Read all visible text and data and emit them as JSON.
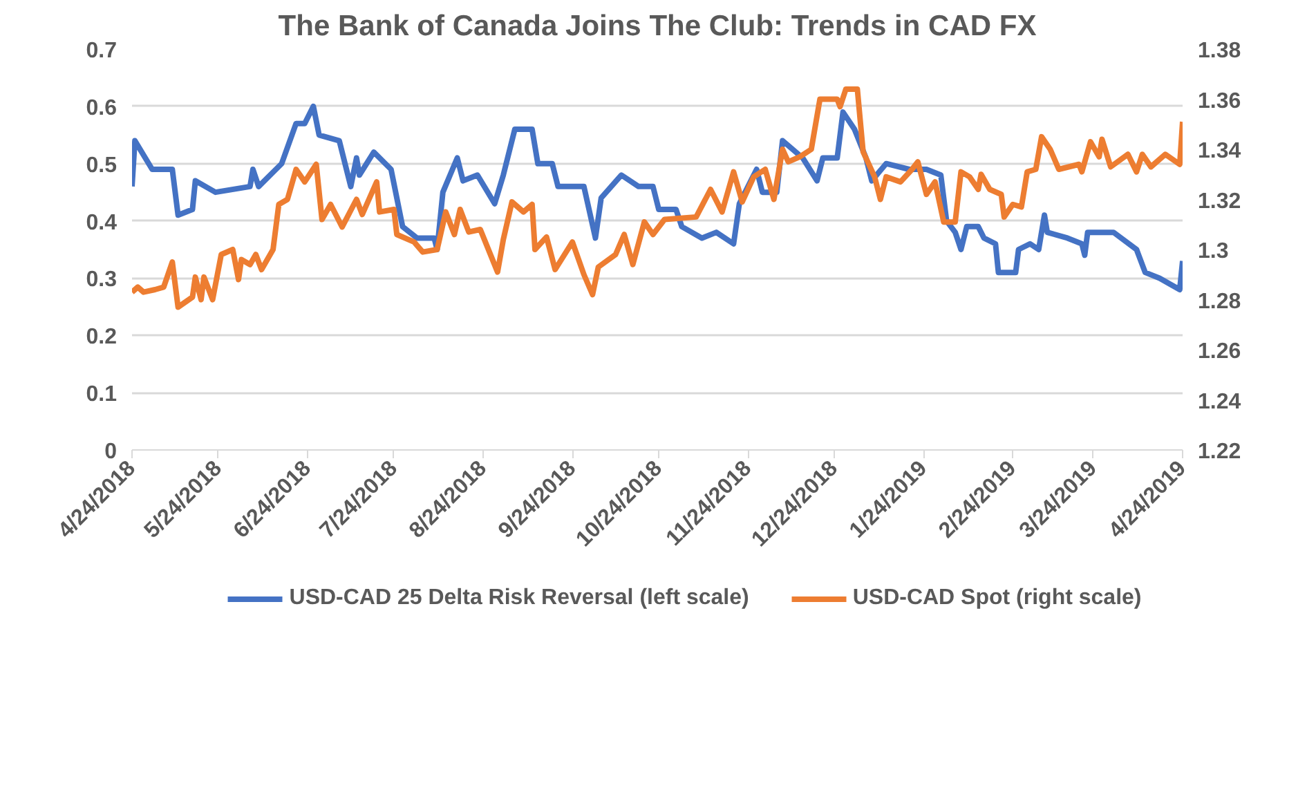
{
  "chart_data": {
    "type": "line",
    "title": "The Bank of Canada Joins The Club: Trends in CAD FX",
    "xlim": [
      "2018-04-24",
      "2019-04-24"
    ],
    "xticks": [
      {
        "value": "2018-04-24",
        "label": "4/24/2018"
      },
      {
        "value": "2018-05-24",
        "label": "5/24/2018"
      },
      {
        "value": "2018-06-24",
        "label": "6/24/2018"
      },
      {
        "value": "2018-07-24",
        "label": "7/24/2018"
      },
      {
        "value": "2018-08-24",
        "label": "8/24/2018"
      },
      {
        "value": "2018-09-24",
        "label": "9/24/2018"
      },
      {
        "value": "2018-10-24",
        "label": "10/24/2018"
      },
      {
        "value": "2018-11-24",
        "label": "11/24/2018"
      },
      {
        "value": "2018-12-24",
        "label": "12/24/2018"
      },
      {
        "value": "2019-01-24",
        "label": "1/24/2019"
      },
      {
        "value": "2019-02-24",
        "label": "2/24/2019"
      },
      {
        "value": "2019-03-24",
        "label": "3/24/2019"
      },
      {
        "value": "2019-04-24",
        "label": "4/24/2019"
      }
    ],
    "ylim": [
      0,
      0.7
    ],
    "yticks": [
      0,
      0.1,
      0.2,
      0.3,
      0.4,
      0.5,
      0.6,
      0.7
    ],
    "y2lim": [
      1.22,
      1.38
    ],
    "y2ticks": [
      1.22,
      1.24,
      1.26,
      1.28,
      {
        "value": 1.3,
        "label": "1.3"
      },
      1.32,
      1.34,
      1.36,
      1.38
    ],
    "grid": "y",
    "legend": "bottom",
    "line_style": "solid",
    "series": [
      {
        "name": "USD-CAD 25 Delta Risk Reversal (left scale)",
        "color": "#4472c4",
        "x": [
          "2018-04-24",
          "2018-04-25",
          "2018-05-01",
          "2018-05-08",
          "2018-05-10",
          "2018-05-15",
          "2018-05-16",
          "2018-05-23",
          "2018-06-04",
          "2018-06-05",
          "2018-06-07",
          "2018-06-15",
          "2018-06-20",
          "2018-06-23",
          "2018-06-26",
          "2018-06-28",
          "2018-07-05",
          "2018-07-09",
          "2018-07-11",
          "2018-07-12",
          "2018-07-17",
          "2018-07-23",
          "2018-07-27",
          "2018-08-01",
          "2018-08-07",
          "2018-08-08",
          "2018-08-10",
          "2018-08-15",
          "2018-08-17",
          "2018-08-22",
          "2018-08-28",
          "2018-08-31",
          "2018-09-04",
          "2018-09-10",
          "2018-09-12",
          "2018-09-17",
          "2018-09-19",
          "2018-09-28",
          "2018-10-02",
          "2018-10-04",
          "2018-10-11",
          "2018-10-17",
          "2018-10-22",
          "2018-10-24",
          "2018-10-30",
          "2018-11-01",
          "2018-11-08",
          "2018-11-13",
          "2018-11-19",
          "2018-11-21",
          "2018-11-27",
          "2018-11-29",
          "2018-12-04",
          "2018-12-06",
          "2018-12-13",
          "2018-12-18",
          "2018-12-20",
          "2018-12-25",
          "2018-12-27",
          "2018-12-31",
          "2019-01-04",
          "2019-01-06",
          "2019-01-11",
          "2019-01-19",
          "2019-01-25",
          "2019-01-30",
          "2019-02-01",
          "2019-02-04",
          "2019-02-06",
          "2019-02-08",
          "2019-02-12",
          "2019-02-14",
          "2019-02-18",
          "2019-02-19",
          "2019-02-25",
          "2019-02-26",
          "2019-03-02",
          "2019-03-05",
          "2019-03-07",
          "2019-03-08",
          "2019-03-15",
          "2019-03-20",
          "2019-03-21",
          "2019-03-22",
          "2019-03-31",
          "2019-04-08",
          "2019-04-11",
          "2019-04-16",
          "2019-04-23",
          "2019-04-24"
        ],
        "values": [
          0.46,
          0.54,
          0.49,
          0.49,
          0.41,
          0.42,
          0.47,
          0.45,
          0.46,
          0.49,
          0.46,
          0.5,
          0.57,
          0.57,
          0.6,
          0.55,
          0.54,
          0.46,
          0.51,
          0.48,
          0.52,
          0.49,
          0.39,
          0.37,
          0.37,
          0.35,
          0.45,
          0.51,
          0.47,
          0.48,
          0.43,
          0.48,
          0.56,
          0.56,
          0.5,
          0.5,
          0.46,
          0.46,
          0.37,
          0.44,
          0.48,
          0.46,
          0.46,
          0.42,
          0.42,
          0.39,
          0.37,
          0.38,
          0.36,
          0.43,
          0.49,
          0.45,
          0.45,
          0.54,
          0.51,
          0.47,
          0.51,
          0.51,
          0.59,
          0.56,
          0.51,
          0.47,
          0.5,
          0.49,
          0.49,
          0.48,
          0.4,
          0.38,
          0.35,
          0.39,
          0.39,
          0.37,
          0.36,
          0.31,
          0.31,
          0.35,
          0.36,
          0.35,
          0.41,
          0.38,
          0.37,
          0.36,
          0.34,
          0.38,
          0.38,
          0.35,
          0.31,
          0.3,
          0.28,
          0.33
        ]
      },
      {
        "name": "USD-CAD Spot (right scale)",
        "color": "#ed7d31",
        "axis": "y2",
        "x": [
          "2018-04-24",
          "2018-04-26",
          "2018-04-28",
          "2018-05-02",
          "2018-05-05",
          "2018-05-08",
          "2018-05-10",
          "2018-05-15",
          "2018-05-16",
          "2018-05-18",
          "2018-05-19",
          "2018-05-22",
          "2018-05-25",
          "2018-05-29",
          "2018-05-31",
          "2018-06-01",
          "2018-06-04",
          "2018-06-06",
          "2018-06-08",
          "2018-06-12",
          "2018-06-14",
          "2018-06-17",
          "2018-06-20",
          "2018-06-23",
          "2018-06-27",
          "2018-06-29",
          "2018-07-02",
          "2018-07-06",
          "2018-07-11",
          "2018-07-13",
          "2018-07-18",
          "2018-07-19",
          "2018-07-24",
          "2018-07-25",
          "2018-07-31",
          "2018-08-03",
          "2018-08-08",
          "2018-08-11",
          "2018-08-14",
          "2018-08-16",
          "2018-08-19",
          "2018-08-23",
          "2018-08-29",
          "2018-08-31",
          "2018-09-03",
          "2018-09-07",
          "2018-09-10",
          "2018-09-11",
          "2018-09-15",
          "2018-09-18",
          "2018-09-24",
          "2018-09-28",
          "2018-10-01",
          "2018-10-03",
          "2018-10-09",
          "2018-10-12",
          "2018-10-15",
          "2018-10-19",
          "2018-10-22",
          "2018-10-26",
          "2018-11-06",
          "2018-11-11",
          "2018-11-15",
          "2018-11-19",
          "2018-11-22",
          "2018-11-26",
          "2018-11-30",
          "2018-12-03",
          "2018-12-06",
          "2018-12-08",
          "2018-12-12",
          "2018-12-16",
          "2018-12-19",
          "2018-12-25",
          "2018-12-26",
          "2018-12-28",
          "2018-12-29",
          "2019-01-01",
          "2019-01-03",
          "2019-01-07",
          "2019-01-09",
          "2019-01-11",
          "2019-01-16",
          "2019-01-20",
          "2019-01-22",
          "2019-01-25",
          "2019-01-28",
          "2019-01-31",
          "2019-02-04",
          "2019-02-06",
          "2019-02-09",
          "2019-02-12",
          "2019-02-13",
          "2019-02-16",
          "2019-02-20",
          "2019-02-21",
          "2019-02-24",
          "2019-02-27",
          "2019-03-01",
          "2019-03-04",
          "2019-03-06",
          "2019-03-09",
          "2019-03-12",
          "2019-03-19",
          "2019-03-20",
          "2019-03-23",
          "2019-03-26",
          "2019-03-27",
          "2019-03-30",
          "2019-04-05",
          "2019-04-08",
          "2019-04-10",
          "2019-04-13",
          "2019-04-18",
          "2019-04-23",
          "2019-04-24"
        ],
        "values": [
          1.283,
          1.285,
          1.283,
          1.284,
          1.285,
          1.295,
          1.277,
          1.281,
          1.289,
          1.28,
          1.289,
          1.28,
          1.298,
          1.3,
          1.288,
          1.296,
          1.294,
          1.298,
          1.292,
          1.3,
          1.318,
          1.32,
          1.332,
          1.327,
          1.334,
          1.312,
          1.318,
          1.309,
          1.32,
          1.314,
          1.327,
          1.315,
          1.316,
          1.306,
          1.303,
          1.299,
          1.3,
          1.315,
          1.306,
          1.316,
          1.307,
          1.308,
          1.291,
          1.304,
          1.319,
          1.315,
          1.318,
          1.3,
          1.305,
          1.292,
          1.303,
          1.29,
          1.282,
          1.293,
          1.298,
          1.306,
          1.294,
          1.311,
          1.306,
          1.312,
          1.313,
          1.324,
          1.315,
          1.331,
          1.319,
          1.329,
          1.332,
          1.32,
          1.34,
          1.335,
          1.337,
          1.34,
          1.36,
          1.36,
          1.357,
          1.364,
          1.364,
          1.364,
          1.339,
          1.329,
          1.32,
          1.329,
          1.327,
          1.332,
          1.335,
          1.322,
          1.327,
          1.311,
          1.311,
          1.331,
          1.329,
          1.324,
          1.33,
          1.324,
          1.322,
          1.313,
          1.318,
          1.317,
          1.331,
          1.332,
          1.345,
          1.34,
          1.332,
          1.334,
          1.331,
          1.343,
          1.337,
          1.344,
          1.333,
          1.338,
          1.331,
          1.338,
          1.333,
          1.338,
          1.334,
          1.351
        ]
      }
    ]
  }
}
